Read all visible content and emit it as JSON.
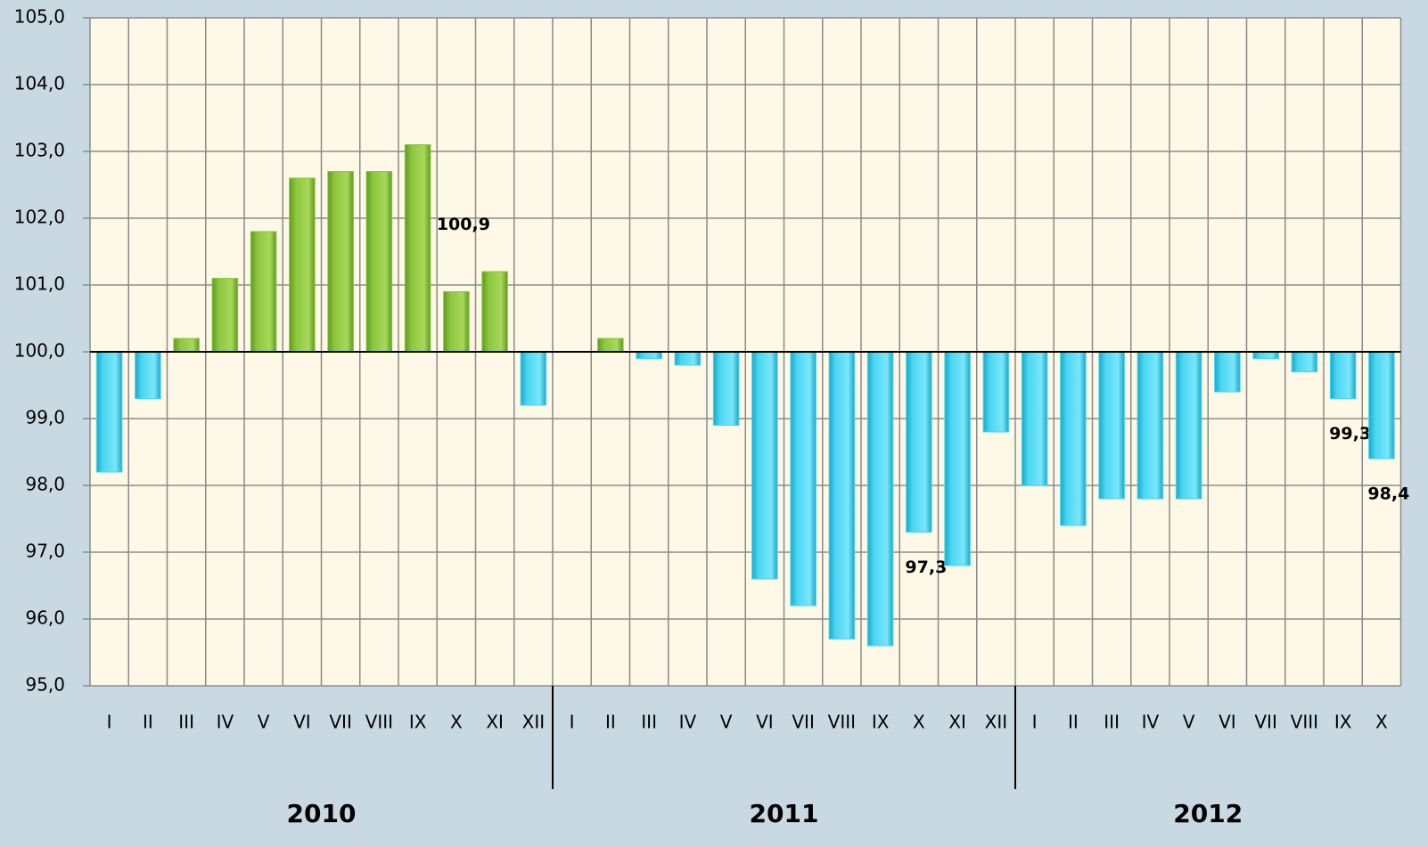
{
  "chart_data": {
    "type": "bar",
    "categories": [
      "I",
      "II",
      "III",
      "IV",
      "V",
      "VI",
      "VII",
      "VIII",
      "IX",
      "X",
      "XI",
      "XII",
      "I",
      "II",
      "III",
      "IV",
      "V",
      "VI",
      "VII",
      "VIII",
      "IX",
      "X",
      "XI",
      "XII",
      "I",
      "II",
      "III",
      "IV",
      "V",
      "VI",
      "VII",
      "VIII",
      "IX",
      "X"
    ],
    "groups": [
      "2010",
      "2011",
      "2012"
    ],
    "values": [
      98.2,
      99.3,
      100.2,
      101.1,
      101.8,
      102.6,
      102.7,
      102.7,
      103.1,
      100.9,
      101.2,
      99.2,
      100.0,
      100.2,
      99.9,
      99.8,
      98.9,
      96.6,
      96.2,
      95.7,
      95.6,
      97.3,
      96.8,
      98.8,
      98.0,
      97.4,
      97.8,
      97.8,
      97.8,
      99.4,
      99.9,
      99.7,
      99.3,
      98.4
    ],
    "value_labels": [
      null,
      null,
      null,
      null,
      null,
      null,
      null,
      null,
      null,
      "100,9",
      null,
      null,
      null,
      null,
      null,
      null,
      null,
      null,
      null,
      null,
      null,
      "97,3",
      null,
      null,
      null,
      null,
      null,
      null,
      null,
      null,
      null,
      null,
      "99,3",
      "98,4"
    ],
    "baseline": 100,
    "color_above": "#8cc63e",
    "color_below": "#4ad6f2",
    "ylim": [
      95,
      105
    ],
    "yticks": [
      {
        "value": 95,
        "label": "95,0"
      },
      {
        "value": 96,
        "label": "96,0"
      },
      {
        "value": 97,
        "label": "97,0"
      },
      {
        "value": 98,
        "label": "98,0"
      },
      {
        "value": 99,
        "label": "99,0"
      },
      {
        "value": 100,
        "label": "100,0"
      },
      {
        "value": 101,
        "label": "101,0"
      },
      {
        "value": 102,
        "label": "102,0"
      },
      {
        "value": 103,
        "label": "103,0"
      },
      {
        "value": 104,
        "label": "104,0"
      },
      {
        "value": 105,
        "label": "105,0"
      }
    ],
    "grid": true
  }
}
